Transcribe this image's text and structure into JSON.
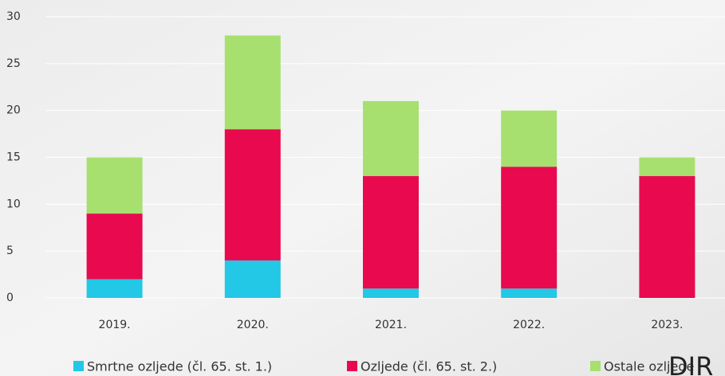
{
  "chart_data": {
    "type": "stacked_bar",
    "categories": [
      "2019.",
      "2020.",
      "2021.",
      "2022.",
      "2023."
    ],
    "series": [
      {
        "name": "Smrtne ozljede (čl. 65. st. 1.)",
        "color": "#22c8e5",
        "values": [
          2,
          4,
          1,
          1,
          0
        ]
      },
      {
        "name": "Ozljede (čl. 65. st. 2.)",
        "color": "#e8094f",
        "values": [
          7,
          14,
          12,
          13,
          13
        ]
      },
      {
        "name": "Ostale ozljede",
        "color": "#a7e06f",
        "values": [
          6,
          10,
          8,
          6,
          2
        ]
      }
    ],
    "ylim": [
      0,
      30
    ],
    "yticks": [
      0,
      5,
      10,
      15,
      20,
      25,
      30
    ],
    "grid": true,
    "legend": "bottom",
    "annotation": "DIR"
  }
}
